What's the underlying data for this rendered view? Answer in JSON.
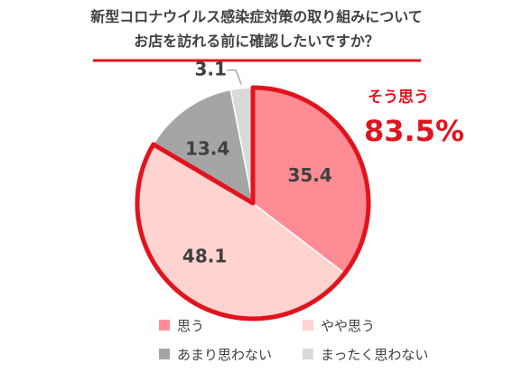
{
  "chart_data": {
    "type": "pie",
    "title_lines": [
      "新型コロナウイルス感染症対策の取り組みについて",
      "お店を訪れる前に確認したいですか？"
    ],
    "slices": [
      {
        "label": "思う",
        "value": 35.4,
        "value_label": "35.4",
        "color": "#ff8c94"
      },
      {
        "label": "やや思う",
        "value": 48.1,
        "value_label": "48.1",
        "color": "#ffd3d0"
      },
      {
        "label": "あまり思わない",
        "value": 13.4,
        "value_label": "13.4",
        "color": "#a5a5a5"
      },
      {
        "label": "まったく思わない",
        "value": 3.1,
        "value_label": "3.1",
        "color": "#d9d9d9"
      }
    ],
    "highlight": {
      "label": "そう思う",
      "value_text": "83.5%",
      "includes": [
        "思う",
        "やや思う"
      ],
      "color": "#e1141e"
    },
    "legend_position": "bottom",
    "start_angle": "12 o'clock, clockwise"
  },
  "colors": {
    "accent": "#e1141e",
    "text": "#404040"
  }
}
